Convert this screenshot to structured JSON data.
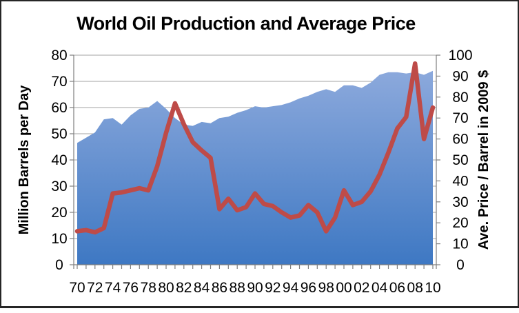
{
  "frame": {
    "background": "#ffffff",
    "border_color": "#262626"
  },
  "chart_data": {
    "type": "area+line combo",
    "title": "World Oil Production and Average Price",
    "x": [
      1970,
      1971,
      1972,
      1973,
      1974,
      1975,
      1976,
      1977,
      1978,
      1979,
      1980,
      1981,
      1982,
      1983,
      1984,
      1985,
      1986,
      1987,
      1988,
      1989,
      1990,
      1991,
      1992,
      1993,
      1994,
      1995,
      1996,
      1997,
      1998,
      1999,
      2000,
      2001,
      2002,
      2003,
      2004,
      2005,
      2006,
      2007,
      2008,
      2009,
      2010
    ],
    "x_tick_labels": [
      "70",
      "72",
      "74",
      "76",
      "78",
      "80",
      "82",
      "84",
      "86",
      "88",
      "90",
      "92",
      "94",
      "96",
      "98",
      "00",
      "02",
      "04",
      "06",
      "08",
      "10"
    ],
    "series": [
      {
        "name": "World Oil Production",
        "type": "area",
        "axis": "left",
        "fill_top": "#8CA9DC",
        "fill_bottom": "#3E78C3",
        "values": [
          46.5,
          48.5,
          50.5,
          55.5,
          56,
          53.5,
          57,
          59.5,
          60,
          62.5,
          59.5,
          56,
          53.5,
          53,
          54.5,
          54,
          56,
          56.5,
          58,
          59,
          60.5,
          60,
          60.5,
          61,
          62,
          63.5,
          64.5,
          66,
          67,
          66,
          68.5,
          68.5,
          67.5,
          69.5,
          72.5,
          73.5,
          73.5,
          73,
          73.5,
          72.5,
          74
        ]
      },
      {
        "name": "Average Price per Barrel",
        "type": "line",
        "axis": "right",
        "color": "#BE4B48",
        "stroke_width": 6.5,
        "values": [
          16,
          16.5,
          15.5,
          17.5,
          34,
          34.5,
          35.5,
          36.5,
          35.5,
          47,
          63,
          77,
          67,
          58.5,
          54.5,
          51,
          26.5,
          31.5,
          26,
          27.5,
          34,
          29,
          28,
          25,
          22.5,
          23.5,
          28.5,
          25,
          16,
          22.5,
          35.5,
          28.5,
          30,
          35,
          43,
          53.5,
          65,
          70.5,
          96,
          60,
          75
        ]
      }
    ],
    "left_axis": {
      "label": "Million Barrels per Day",
      "min": 0,
      "max": 80,
      "step": 10,
      "tick_labels": [
        "0",
        "10",
        "20",
        "30",
        "40",
        "50",
        "60",
        "70",
        "80"
      ]
    },
    "right_axis": {
      "label": "Ave. Price / Barrel in 2009 $",
      "min": 0,
      "max": 100,
      "step": 10,
      "tick_labels": [
        "0",
        "10",
        "20",
        "30",
        "40",
        "50",
        "60",
        "70",
        "80",
        "90",
        "100"
      ]
    },
    "grid": true,
    "legend": "none",
    "grid_color": "#A3A3A3",
    "axis_color": "#7F7F7F",
    "text_color": "#000000"
  }
}
